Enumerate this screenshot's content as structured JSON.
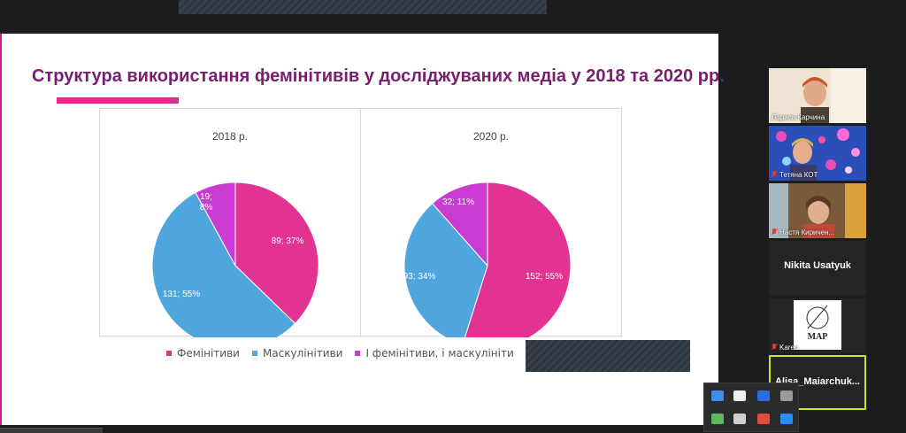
{
  "slide": {
    "title": "Структура використання фемінітивів у досліджуваних медіа у 2018 та 2020 рр."
  },
  "colors": {
    "feminitives": "#e23393",
    "masculinitives": "#4ea6dc",
    "both": "#c93bd1",
    "title": "#7a1c70"
  },
  "chart_data": [
    {
      "type": "pie",
      "title": "2018 р.",
      "categories": [
        "Фемінітиви",
        "Маскулінітиви",
        "І фемінітиви, і маскулініти"
      ],
      "values": [
        89,
        131,
        19
      ],
      "percents": [
        37,
        55,
        8
      ],
      "labels": [
        "89; 37%",
        "131; 55%",
        "19; 8%"
      ]
    },
    {
      "type": "pie",
      "title": "2020 р.",
      "categories": [
        "Фемінітиви",
        "Маскулінітиви",
        "І фемінітиви, і маскулініти"
      ],
      "values": [
        152,
        93,
        32
      ],
      "percents": [
        55,
        34,
        11
      ],
      "labels": [
        "152; 55%",
        "93; 34%",
        "32; 11%"
      ]
    }
  ],
  "legend": {
    "items": [
      "Фемінітиви",
      "Маскулінітиви",
      "І фемінітиви, і маскулініти"
    ]
  },
  "participants": [
    {
      "name": "Лариса Карчина",
      "muted": false,
      "video": true
    },
    {
      "name": "Тетяна КОТ",
      "muted": true,
      "video": true
    },
    {
      "name": "Настя Киричен...",
      "muted": true,
      "video": true
    },
    {
      "name": "Nikita Usatyuk",
      "muted": false,
      "video": false
    },
    {
      "name": "Karen",
      "muted": true,
      "video": true,
      "logo_text": "MAP"
    },
    {
      "name": "Alisa_Maiarchuk...",
      "muted": false,
      "video": false,
      "active": true
    }
  ]
}
